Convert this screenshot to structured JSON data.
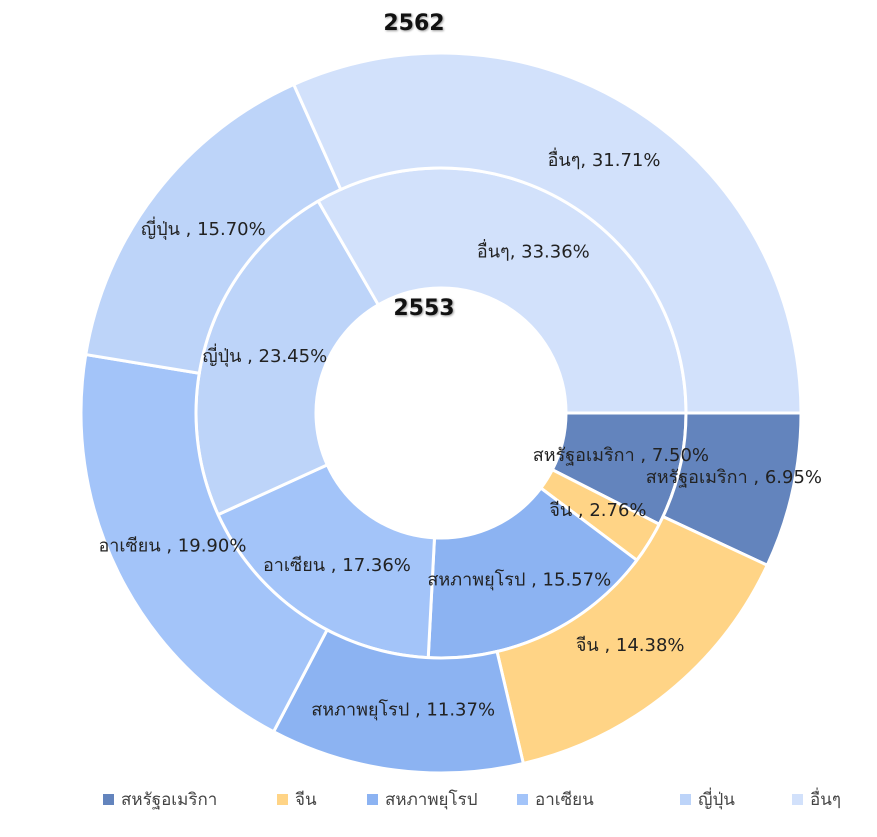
{
  "chart_data": {
    "type": "donut",
    "categories": [
      "สหรัฐอเมริกา",
      "จีน",
      "สหภาพยุโรป",
      "อาเซียน",
      "ญี่ปุ่น",
      "อื่นๆ"
    ],
    "colors": [
      "#6384bd",
      "#ffd486",
      "#8cb3f2",
      "#a3c4f9",
      "#bdd4f9",
      "#d2e1fb"
    ],
    "series": [
      {
        "name": "2553",
        "values": [
          7.5,
          2.76,
          15.57,
          17.36,
          23.45,
          33.36
        ],
        "value_labels": [
          "สหรัฐอเมริกา , 7.50%",
          "จีน , 2.76%",
          "สหภาพยุโรป , 15.57%",
          "อาเซียน , 17.36%",
          "ญี่ปุ่น , 23.45%",
          "อื่นๆ, 33.36%"
        ]
      },
      {
        "name": "2562",
        "values": [
          6.95,
          14.38,
          11.37,
          19.9,
          15.7,
          31.71
        ],
        "value_labels": [
          "สหรัฐอเมริกา , 6.95%",
          "จีน , 14.38%",
          "สหภาพยุโรป , 11.37%",
          "อาเซียน , 19.90%",
          "ญี่ปุ่น , 15.70%",
          "อื่นๆ, 31.71%"
        ]
      }
    ],
    "legend": "bottom"
  }
}
